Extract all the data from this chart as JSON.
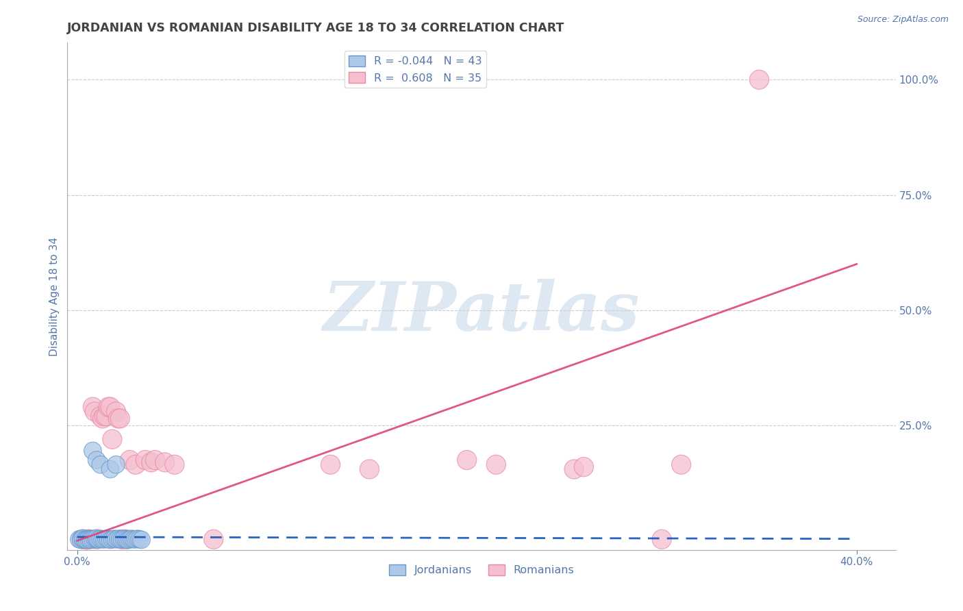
{
  "title": "JORDANIAN VS ROMANIAN DISABILITY AGE 18 TO 34 CORRELATION CHART",
  "source_text": "Source: ZipAtlas.com",
  "ylabel": "Disability Age 18 to 34",
  "xlim": [
    -0.005,
    0.42
  ],
  "ylim": [
    -0.02,
    1.08
  ],
  "x_ticks": [
    0.0,
    0.4
  ],
  "x_tick_labels": [
    "0.0%",
    "40.0%"
  ],
  "y_tick_labels_right": [
    "25.0%",
    "50.0%",
    "75.0%",
    "100.0%"
  ],
  "y_ticks_right": [
    0.25,
    0.5,
    0.75,
    1.0
  ],
  "jordanian_R": -0.044,
  "jordanian_N": 43,
  "romanian_R": 0.608,
  "romanian_N": 35,
  "jordanian_color": "#adc8e8",
  "jordanian_edge_color": "#6699cc",
  "romanian_color": "#f5bfce",
  "romanian_edge_color": "#e888a8",
  "jordanian_line_color": "#1155bb",
  "romanian_line_color": "#dd4477",
  "watermark_text": "ZIPatlas",
  "watermark_color": "#dde8f2",
  "background_color": "#ffffff",
  "grid_color": "#cccccc",
  "title_color": "#444444",
  "axis_label_color": "#5577aa",
  "legend_edge_color": "#dddddd",
  "jordanian_points": [
    [
      0.001,
      0.003
    ],
    [
      0.002,
      0.004
    ],
    [
      0.002,
      0.002
    ],
    [
      0.003,
      0.003
    ],
    [
      0.003,
      0.005
    ],
    [
      0.004,
      0.003
    ],
    [
      0.005,
      0.004
    ],
    [
      0.005,
      0.002
    ],
    [
      0.006,
      0.003
    ],
    [
      0.007,
      0.004
    ],
    [
      0.007,
      0.002
    ],
    [
      0.008,
      0.003
    ],
    [
      0.009,
      0.004
    ],
    [
      0.01,
      0.003
    ],
    [
      0.01,
      0.005
    ],
    [
      0.011,
      0.003
    ],
    [
      0.012,
      0.004
    ],
    [
      0.013,
      0.003
    ],
    [
      0.014,
      0.003
    ],
    [
      0.015,
      0.004
    ],
    [
      0.016,
      0.003
    ],
    [
      0.017,
      0.002
    ],
    [
      0.018,
      0.003
    ],
    [
      0.019,
      0.004
    ],
    [
      0.02,
      0.003
    ],
    [
      0.021,
      0.004
    ],
    [
      0.022,
      0.003
    ],
    [
      0.023,
      0.003
    ],
    [
      0.024,
      0.004
    ],
    [
      0.025,
      0.003
    ],
    [
      0.026,
      0.002
    ],
    [
      0.027,
      0.003
    ],
    [
      0.028,
      0.004
    ],
    [
      0.029,
      0.003
    ],
    [
      0.03,
      0.003
    ],
    [
      0.031,
      0.004
    ],
    [
      0.032,
      0.003
    ],
    [
      0.033,
      0.002
    ],
    [
      0.008,
      0.195
    ],
    [
      0.01,
      0.175
    ],
    [
      0.012,
      0.165
    ],
    [
      0.017,
      0.155
    ],
    [
      0.02,
      0.165
    ]
  ],
  "romanian_points": [
    [
      0.003,
      0.003
    ],
    [
      0.005,
      0.002
    ],
    [
      0.006,
      0.003
    ],
    [
      0.008,
      0.29
    ],
    [
      0.009,
      0.28
    ],
    [
      0.01,
      0.003
    ],
    [
      0.012,
      0.27
    ],
    [
      0.013,
      0.265
    ],
    [
      0.014,
      0.27
    ],
    [
      0.015,
      0.27
    ],
    [
      0.016,
      0.29
    ],
    [
      0.017,
      0.29
    ],
    [
      0.018,
      0.22
    ],
    [
      0.02,
      0.28
    ],
    [
      0.021,
      0.265
    ],
    [
      0.022,
      0.265
    ],
    [
      0.023,
      0.003
    ],
    [
      0.025,
      0.003
    ],
    [
      0.027,
      0.175
    ],
    [
      0.03,
      0.165
    ],
    [
      0.035,
      0.175
    ],
    [
      0.038,
      0.17
    ],
    [
      0.04,
      0.175
    ],
    [
      0.045,
      0.17
    ],
    [
      0.05,
      0.165
    ],
    [
      0.07,
      0.003
    ],
    [
      0.13,
      0.165
    ],
    [
      0.15,
      0.155
    ],
    [
      0.2,
      0.175
    ],
    [
      0.215,
      0.165
    ],
    [
      0.255,
      0.155
    ],
    [
      0.26,
      0.16
    ],
    [
      0.3,
      0.003
    ],
    [
      0.31,
      0.165
    ],
    [
      0.35,
      1.0
    ]
  ],
  "j_line_x": [
    0.0,
    0.4
  ],
  "j_line_y": [
    0.008,
    0.004
  ],
  "r_line_x": [
    0.0,
    0.4
  ],
  "r_line_y": [
    0.0,
    0.6
  ]
}
